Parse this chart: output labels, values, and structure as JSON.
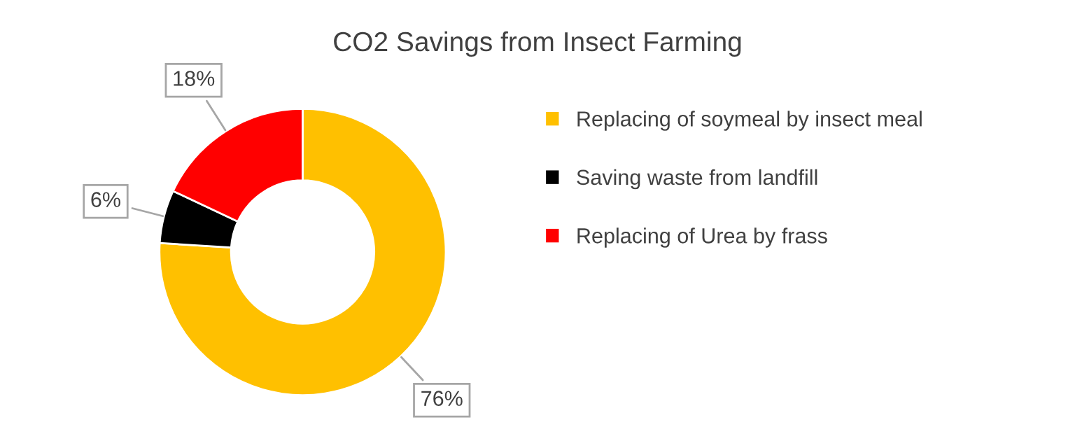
{
  "chart_data": {
    "type": "donut",
    "title": "CO2 Savings from Insect Farming",
    "categories": [
      "Replacing of soymeal by insect meal",
      "Saving waste from landfill",
      "Replacing of Urea by frass"
    ],
    "values": [
      76,
      6,
      18
    ],
    "colors": [
      "#ffc000",
      "#000000",
      "#ff0000"
    ],
    "value_labels": [
      "76%",
      "6%",
      "18%"
    ],
    "legend": "right"
  }
}
